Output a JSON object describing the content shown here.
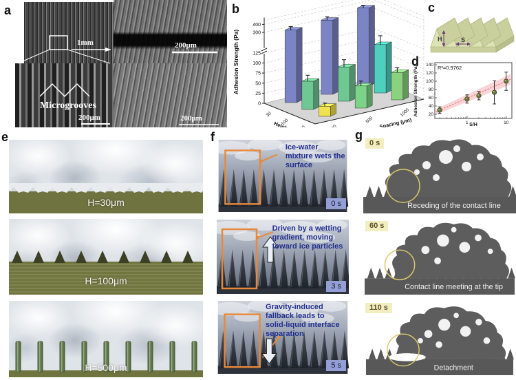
{
  "figure": {
    "panel_a": {
      "letter": "a",
      "scale_top_left": "1mm",
      "scale_bottom_left": "200μm",
      "scale_top_right": "200μm",
      "scale_bottom_right": "200μm",
      "annotation": "Microgrooves"
    },
    "panel_b": {
      "letter": "b"
    },
    "panel_c": {
      "letter": "c",
      "height_symbol": "H",
      "spacing_symbol": "S"
    },
    "panel_d": {
      "letter": "d"
    },
    "panel_e": {
      "letter": "e",
      "frames": [
        {
          "caption": "H=30μm"
        },
        {
          "caption": "H=100μm"
        },
        {
          "caption": "H=500μm"
        }
      ]
    },
    "panel_f": {
      "letter": "f",
      "frames": [
        {
          "time": "0 s",
          "annotation": "Ice-water mixture wets the surface"
        },
        {
          "time": "3 s",
          "annotation": "Driven by a wetting gradient, moving toward ice particles"
        },
        {
          "time": "5 s",
          "annotation": "Gravity-induced fallback leads to solid-liquid interface separation"
        }
      ]
    },
    "panel_g": {
      "letter": "g",
      "frames": [
        {
          "time": "0 s",
          "caption": "Receding of the contact line"
        },
        {
          "time": "60 s",
          "caption": "Contact line meeting at the tip"
        },
        {
          "time": "110 s",
          "caption": "Detachment"
        }
      ]
    }
  },
  "chart_data": [
    {
      "type": "bar",
      "panel": "b",
      "projection": "3d",
      "ylabel": "Adhesion Strength (Pa)",
      "xlabel": "Height (μm)",
      "zlabel": "Spacing (μm)",
      "x_categories": [
        "30",
        "100",
        "500"
      ],
      "z_categories": [
        "100",
        "500",
        "1000"
      ],
      "yticks": [
        0,
        25,
        50,
        75,
        100,
        125,
        300,
        400
      ],
      "axis_break_between": [
        140,
        300
      ],
      "series": [
        {
          "name": "Height 30 μm",
          "color": "#7b84c4",
          "values": [
            320,
            340,
            390
          ],
          "errors": [
            25,
            25,
            20
          ]
        },
        {
          "name": "Height 100 μm",
          "colors": [
            "#6fc793",
            "#6fc793",
            "#4fcfbe"
          ],
          "values": [
            70,
            85,
            120
          ],
          "errors": [
            15,
            18,
            22
          ]
        },
        {
          "name": "Height 500 μm",
          "colors": [
            "#f0e24e",
            "#7dd289",
            "#8bd27f"
          ],
          "values": [
            25,
            55,
            68
          ],
          "errors": [
            8,
            12,
            12
          ]
        }
      ]
    },
    {
      "type": "scatter",
      "panel": "d",
      "xlabel": "S/H",
      "ylabel": "Adhesion Strength (Pa)",
      "xscale": "log",
      "xlim": [
        0.15,
        14
      ],
      "ylim": [
        10,
        145
      ],
      "yticks": [
        20,
        40,
        60,
        80,
        100,
        120,
        140
      ],
      "xticks": [
        1,
        10
      ],
      "annotation": "R²=0.9762",
      "points": {
        "x": [
          0.2,
          1,
          2,
          5,
          10
        ],
        "y": [
          30,
          57,
          65,
          73,
          100
        ],
        "yerr": [
          8,
          10,
          10,
          28,
          22
        ]
      },
      "fit": {
        "type": "linear-log",
        "band": "confidence"
      }
    }
  ],
  "colors": {
    "bar_blue": "#7b84c4",
    "bar_green": "#6fc793",
    "bar_teal": "#4fcfbe",
    "bar_yellow": "#f0e24e",
    "band_pink": "#f6b8bc",
    "fit_red": "#d96a6a",
    "point_olive": "#6a7a3d",
    "substrate_olive": "#6f7340",
    "orange_box": "#e8893a",
    "navy_text": "#23308f",
    "badge_blue": "#939fd4",
    "badge_yellow": "#f3edc2",
    "prism_green": "#dde3b4"
  }
}
